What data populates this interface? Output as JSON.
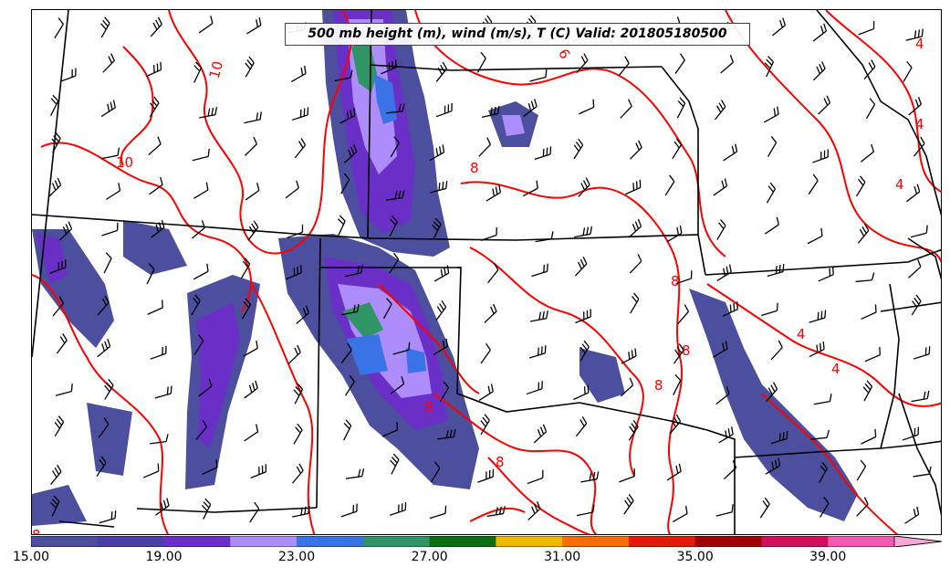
{
  "title": "500 mb height (m), wind (m/s), T (C) Valid: 201805180500",
  "map": {
    "contour_color": "#ff0000",
    "contour_labels": [
      {
        "text": "10"
      },
      {
        "text": "10"
      },
      {
        "text": "6"
      },
      {
        "text": "4"
      },
      {
        "text": "4"
      },
      {
        "text": "4"
      },
      {
        "text": "4"
      },
      {
        "text": "4"
      },
      {
        "text": "8"
      },
      {
        "text": "8"
      },
      {
        "text": "8"
      },
      {
        "text": "8"
      },
      {
        "text": "8"
      },
      {
        "text": "8"
      },
      {
        "text": "8"
      }
    ]
  },
  "colorbar": {
    "min": 15,
    "max": 43,
    "colors": [
      "#4b4f9e",
      "#4a3ea8",
      "#6a2fc6",
      "#ad8cfb",
      "#3a73e6",
      "#2f9566",
      "#0a6e12",
      "#f2b705",
      "#f76d02",
      "#e01b06",
      "#9e0000",
      "#d0105a",
      "#f45ab2",
      "#f8a6d8"
    ],
    "bins": [
      15,
      17,
      19,
      21,
      23,
      25,
      27,
      29,
      31,
      33,
      35,
      37,
      39,
      41,
      43
    ],
    "tick_labels": [
      "15.00",
      "19.00",
      "23.00",
      "27.00",
      "31.00",
      "35.00",
      "39.00"
    ]
  }
}
